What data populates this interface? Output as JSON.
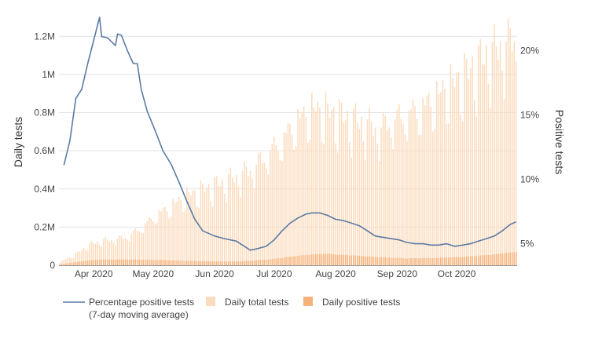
{
  "chart_data": {
    "type": "bar",
    "title": "",
    "ylabel": "Daily tests",
    "y2label": "Positive tests",
    "xlabel": "",
    "x_start": "2020-03-15",
    "x_end": "2020-10-31",
    "ylim": [
      0,
      1300000
    ],
    "y2lim": [
      3.33,
      22.6
    ],
    "y_ticks": [
      {
        "value": 0,
        "label": "0"
      },
      {
        "value": 200000,
        "label": "0.2M"
      },
      {
        "value": 400000,
        "label": "0.4M"
      },
      {
        "value": 600000,
        "label": "0.6M"
      },
      {
        "value": 800000,
        "label": "0.8M"
      },
      {
        "value": 1000000,
        "label": "1M"
      },
      {
        "value": 1200000,
        "label": "1.2M"
      }
    ],
    "y2_ticks": [
      {
        "value": 5,
        "label": "5%"
      },
      {
        "value": 10,
        "label": "10%"
      },
      {
        "value": 15,
        "label": "15%"
      },
      {
        "value": 20,
        "label": "20%"
      }
    ],
    "x_ticks": [
      {
        "date": "2020-04-01",
        "label": "Apr 2020"
      },
      {
        "date": "2020-05-01",
        "label": "May 2020"
      },
      {
        "date": "2020-06-01",
        "label": "Jun 2020"
      },
      {
        "date": "2020-07-01",
        "label": "Jul 2020"
      },
      {
        "date": "2020-08-01",
        "label": "Aug 2020"
      },
      {
        "date": "2020-09-01",
        "label": "Sep 2020"
      },
      {
        "date": "2020-10-01",
        "label": "Oct 2020"
      }
    ],
    "grid": true,
    "legend_position": "bottom",
    "series": [
      {
        "name": "Daily total tests",
        "kind": "bar",
        "axis": "left",
        "color": "#fcdcbe",
        "keyframes": [
          [
            "2020-03-15",
            15000
          ],
          [
            "2020-03-22",
            50000
          ],
          [
            "2020-03-29",
            100000
          ],
          [
            "2020-04-05",
            125000
          ],
          [
            "2020-04-12",
            130000
          ],
          [
            "2020-04-19",
            150000
          ],
          [
            "2020-04-26",
            200000
          ],
          [
            "2020-05-03",
            260000
          ],
          [
            "2020-05-10",
            300000
          ],
          [
            "2020-05-17",
            350000
          ],
          [
            "2020-05-24",
            380000
          ],
          [
            "2020-05-31",
            400000
          ],
          [
            "2020-06-07",
            430000
          ],
          [
            "2020-06-14",
            460000
          ],
          [
            "2020-06-21",
            500000
          ],
          [
            "2020-06-28",
            570000
          ],
          [
            "2020-07-05",
            640000
          ],
          [
            "2020-07-12",
            730000
          ],
          [
            "2020-07-19",
            790000
          ],
          [
            "2020-07-26",
            790000
          ],
          [
            "2020-08-02",
            760000
          ],
          [
            "2020-08-09",
            740000
          ],
          [
            "2020-08-16",
            720000
          ],
          [
            "2020-08-23",
            690000
          ],
          [
            "2020-08-30",
            740000
          ],
          [
            "2020-09-06",
            770000
          ],
          [
            "2020-09-13",
            800000
          ],
          [
            "2020-09-20",
            850000
          ],
          [
            "2020-09-27",
            910000
          ],
          [
            "2020-10-04",
            960000
          ],
          [
            "2020-10-11",
            1020000
          ],
          [
            "2020-10-18",
            1080000
          ],
          [
            "2020-10-25",
            1120000
          ],
          [
            "2020-10-31",
            1160000
          ]
        ]
      },
      {
        "name": "Daily positive tests",
        "kind": "bar",
        "axis": "left",
        "color": "#f6b27a",
        "keyframes": [
          [
            "2020-03-15",
            5000
          ],
          [
            "2020-03-22",
            15000
          ],
          [
            "2020-03-29",
            25000
          ],
          [
            "2020-04-05",
            30000
          ],
          [
            "2020-04-19",
            30000
          ],
          [
            "2020-05-03",
            28000
          ],
          [
            "2020-05-17",
            24000
          ],
          [
            "2020-05-31",
            20000
          ],
          [
            "2020-06-14",
            20000
          ],
          [
            "2020-06-28",
            30000
          ],
          [
            "2020-07-12",
            48000
          ],
          [
            "2020-07-19",
            56000
          ],
          [
            "2020-07-26",
            60000
          ],
          [
            "2020-08-09",
            52000
          ],
          [
            "2020-08-23",
            42000
          ],
          [
            "2020-09-06",
            36000
          ],
          [
            "2020-09-20",
            38000
          ],
          [
            "2020-10-04",
            44000
          ],
          [
            "2020-10-18",
            55000
          ],
          [
            "2020-10-31",
            70000
          ]
        ]
      },
      {
        "name": "Percentage positive tests (7-day moving average)",
        "name_lines": [
          "Percentage positive tests",
          "(7-day moving average)"
        ],
        "kind": "line",
        "axis": "right",
        "color": "#5b7ba3",
        "points": [
          [
            "2020-03-17",
            11.1
          ],
          [
            "2020-03-20",
            13.0
          ],
          [
            "2020-03-23",
            16.3
          ],
          [
            "2020-03-26",
            17.0
          ],
          [
            "2020-03-29",
            19.0
          ],
          [
            "2020-04-01",
            20.8
          ],
          [
            "2020-04-04",
            22.6
          ],
          [
            "2020-04-05",
            21.1
          ],
          [
            "2020-04-08",
            21.0
          ],
          [
            "2020-04-12",
            20.4
          ],
          [
            "2020-04-13",
            21.3
          ],
          [
            "2020-04-15",
            21.2
          ],
          [
            "2020-04-18",
            20.0
          ],
          [
            "2020-04-21",
            19.0
          ],
          [
            "2020-04-23",
            19.0
          ],
          [
            "2020-04-25",
            17.0
          ],
          [
            "2020-04-28",
            15.3
          ],
          [
            "2020-05-02",
            13.8
          ],
          [
            "2020-05-06",
            12.2
          ],
          [
            "2020-05-10",
            11.2
          ],
          [
            "2020-05-14",
            9.8
          ],
          [
            "2020-05-18",
            8.3
          ],
          [
            "2020-05-22",
            6.9
          ],
          [
            "2020-05-26",
            6.0
          ],
          [
            "2020-06-01",
            5.6
          ],
          [
            "2020-06-06",
            5.4
          ],
          [
            "2020-06-12",
            5.2
          ],
          [
            "2020-06-15",
            4.9
          ],
          [
            "2020-06-19",
            4.5
          ],
          [
            "2020-06-22",
            4.6
          ],
          [
            "2020-06-27",
            4.8
          ],
          [
            "2020-07-01",
            5.3
          ],
          [
            "2020-07-05",
            6.0
          ],
          [
            "2020-07-09",
            6.6
          ],
          [
            "2020-07-13",
            7.0
          ],
          [
            "2020-07-17",
            7.3
          ],
          [
            "2020-07-20",
            7.4
          ],
          [
            "2020-07-24",
            7.4
          ],
          [
            "2020-07-28",
            7.2
          ],
          [
            "2020-08-01",
            6.9
          ],
          [
            "2020-08-05",
            6.8
          ],
          [
            "2020-08-09",
            6.6
          ],
          [
            "2020-08-13",
            6.4
          ],
          [
            "2020-08-17",
            6.0
          ],
          [
            "2020-08-21",
            5.6
          ],
          [
            "2020-08-25",
            5.5
          ],
          [
            "2020-08-29",
            5.4
          ],
          [
            "2020-09-02",
            5.3
          ],
          [
            "2020-09-06",
            5.1
          ],
          [
            "2020-09-10",
            5.0
          ],
          [
            "2020-09-14",
            5.0
          ],
          [
            "2020-09-18",
            4.9
          ],
          [
            "2020-09-22",
            4.9
          ],
          [
            "2020-09-26",
            5.0
          ],
          [
            "2020-09-30",
            4.8
          ],
          [
            "2020-10-04",
            4.9
          ],
          [
            "2020-10-08",
            5.0
          ],
          [
            "2020-10-12",
            5.2
          ],
          [
            "2020-10-16",
            5.4
          ],
          [
            "2020-10-20",
            5.6
          ],
          [
            "2020-10-24",
            6.0
          ],
          [
            "2020-10-28",
            6.5
          ],
          [
            "2020-10-31",
            6.7
          ]
        ]
      }
    ]
  }
}
